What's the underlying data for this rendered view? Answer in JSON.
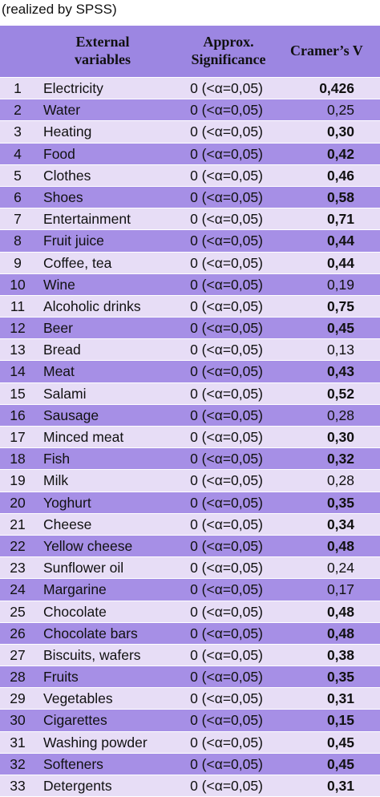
{
  "caption": "(realized by SPSS)",
  "header": {
    "variables": "External variables",
    "significance": "Approx. Significance",
    "cramers_v": "Cramer’s V"
  },
  "table": {
    "rows": [
      {
        "n": "1",
        "name": "Electricity",
        "sig": "0 (<α=0,05)",
        "v": "0,426",
        "bold": true
      },
      {
        "n": "2",
        "name": "Water",
        "sig": "0 (<α=0,05)",
        "v": "0,25",
        "bold": false
      },
      {
        "n": "3",
        "name": "Heating",
        "sig": "0 (<α=0,05)",
        "v": "0,30",
        "bold": true
      },
      {
        "n": "4",
        "name": "Food",
        "sig": "0 (<α=0,05)",
        "v": "0,42",
        "bold": true
      },
      {
        "n": "5",
        "name": "Clothes",
        "sig": "0 (<α=0,05)",
        "v": "0,46",
        "bold": true
      },
      {
        "n": "6",
        "name": "Shoes",
        "sig": "0 (<α=0,05)",
        "v": "0,58",
        "bold": true
      },
      {
        "n": "7",
        "name": "Entertainment",
        "sig": "0 (<α=0,05)",
        "v": "0,71",
        "bold": true
      },
      {
        "n": "8",
        "name": "Fruit juice",
        "sig": "0 (<α=0,05)",
        "v": "0,44",
        "bold": true
      },
      {
        "n": "9",
        "name": "Coffee, tea",
        "sig": "0 (<α=0,05)",
        "v": "0,44",
        "bold": true
      },
      {
        "n": "10",
        "name": "Wine",
        "sig": "0 (<α=0,05)",
        "v": "0,19",
        "bold": false
      },
      {
        "n": "11",
        "name": "Alcoholic drinks",
        "sig": "0 (<α=0,05)",
        "v": "0,75",
        "bold": true
      },
      {
        "n": "12",
        "name": "Beer",
        "sig": "0 (<α=0,05)",
        "v": "0,45",
        "bold": true
      },
      {
        "n": "13",
        "name": "Bread",
        "sig": "0 (<α=0,05)",
        "v": "0,13",
        "bold": false
      },
      {
        "n": "14",
        "name": "Meat",
        "sig": "0 (<α=0,05)",
        "v": "0,43",
        "bold": true
      },
      {
        "n": "15",
        "name": "Salami",
        "sig": "0 (<α=0,05)",
        "v": "0,52",
        "bold": true
      },
      {
        "n": "16",
        "name": "Sausage",
        "sig": "0 (<α=0,05)",
        "v": "0,28",
        "bold": false
      },
      {
        "n": "17",
        "name": "Minced meat",
        "sig": "0 (<α=0,05)",
        "v": "0,30",
        "bold": true
      },
      {
        "n": "18",
        "name": "Fish",
        "sig": "0 (<α=0,05)",
        "v": "0,32",
        "bold": true
      },
      {
        "n": "19",
        "name": "Milk",
        "sig": "0 (<α=0,05)",
        "v": "0,28",
        "bold": false
      },
      {
        "n": "20",
        "name": "Yoghurt",
        "sig": "0 (<α=0,05)",
        "v": "0,35",
        "bold": true
      },
      {
        "n": "21",
        "name": "Cheese",
        "sig": "0 (<α=0,05)",
        "v": "0,34",
        "bold": true
      },
      {
        "n": "22",
        "name": "Yellow cheese",
        "sig": "0 (<α=0,05)",
        "v": "0,48",
        "bold": true
      },
      {
        "n": "23",
        "name": "Sunflower oil",
        "sig": "0 (<α=0,05)",
        "v": "0,24",
        "bold": false
      },
      {
        "n": "24",
        "name": "Margarine",
        "sig": "0 (<α=0,05)",
        "v": "0,17",
        "bold": false
      },
      {
        "n": "25",
        "name": "Chocolate",
        "sig": "0 (<α=0,05)",
        "v": "0,48",
        "bold": true
      },
      {
        "n": "26",
        "name": "Chocolate bars",
        "sig": "0 (<α=0,05)",
        "v": "0,48",
        "bold": true
      },
      {
        "n": "27",
        "name": "Biscuits, wafers",
        "sig": "0 (<α=0,05)",
        "v": "0,38",
        "bold": true
      },
      {
        "n": "28",
        "name": "Fruits",
        "sig": "0 (<α=0,05)",
        "v": "0,35",
        "bold": true
      },
      {
        "n": "29",
        "name": "Vegetables",
        "sig": "0 (<α=0,05)",
        "v": "0,31",
        "bold": true
      },
      {
        "n": "30",
        "name": "Cigarettes",
        "sig": "0 (<α=0,05)",
        "v": "0,15",
        "bold": true
      },
      {
        "n": "31",
        "name": "Washing powder",
        "sig": "0 (<α=0,05)",
        "v": "0,45",
        "bold": true
      },
      {
        "n": "32",
        "name": "Softeners",
        "sig": "0 (<α=0,05)",
        "v": "0,45",
        "bold": true
      },
      {
        "n": "33",
        "name": "Detergents",
        "sig": "0 (<α=0,05)",
        "v": "0,31",
        "bold": true
      }
    ]
  }
}
